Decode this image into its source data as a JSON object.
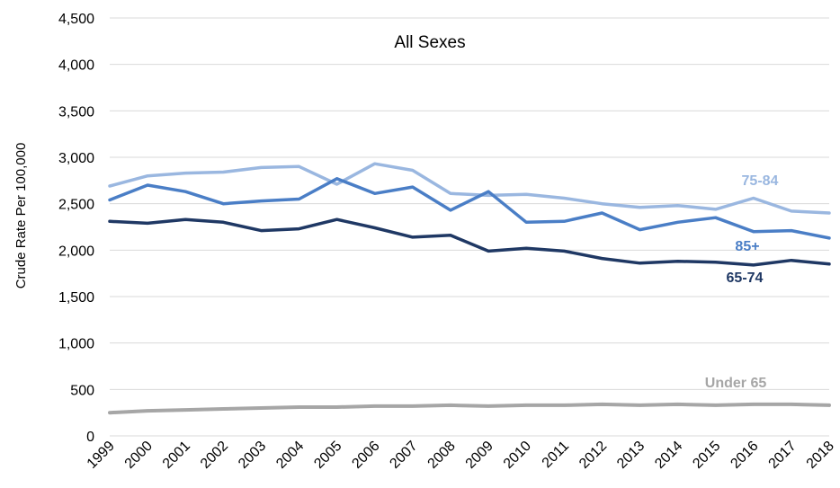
{
  "chart_data": {
    "type": "line",
    "title": "All Sexes",
    "xlabel": "",
    "ylabel": "Crude Rate Per 100,000",
    "ylim": [
      0,
      4500
    ],
    "yticks": [
      "0",
      "500",
      "1,000",
      "1,500",
      "2,000",
      "2,500",
      "3,000",
      "3,500",
      "4,000",
      "4,500"
    ],
    "grid": true,
    "legend": "inline labels",
    "categories": [
      "1999",
      "2000",
      "2001",
      "2002",
      "2003",
      "2004",
      "2005",
      "2006",
      "2007",
      "2008",
      "2009",
      "2010",
      "2011",
      "2012",
      "2013",
      "2014",
      "2015",
      "2016",
      "2017",
      "2018"
    ],
    "series": [
      {
        "name": "75-84",
        "color": "#9ab7e0",
        "values": [
          2690,
          2800,
          2830,
          2840,
          2890,
          2900,
          2710,
          2930,
          2860,
          2610,
          2590,
          2600,
          2560,
          2500,
          2460,
          2480,
          2440,
          2560,
          2420,
          2400
        ]
      },
      {
        "name": "85+",
        "color": "#4a7ec6",
        "values": [
          2540,
          2700,
          2630,
          2500,
          2530,
          2550,
          2770,
          2610,
          2680,
          2430,
          2630,
          2300,
          2310,
          2400,
          2220,
          2300,
          2350,
          2200,
          2210,
          2130
        ]
      },
      {
        "name": "65-74",
        "color": "#1f3864",
        "values": [
          2310,
          2290,
          2330,
          2300,
          2210,
          2230,
          2330,
          2240,
          2140,
          2160,
          1990,
          2020,
          1990,
          1910,
          1860,
          1880,
          1870,
          1840,
          1890,
          1850
        ]
      },
      {
        "name": "Under 65",
        "color": "#a6a6a6",
        "values": [
          250,
          270,
          280,
          290,
          300,
          310,
          310,
          320,
          320,
          330,
          320,
          330,
          330,
          340,
          330,
          340,
          330,
          340,
          340,
          330
        ]
      }
    ]
  }
}
